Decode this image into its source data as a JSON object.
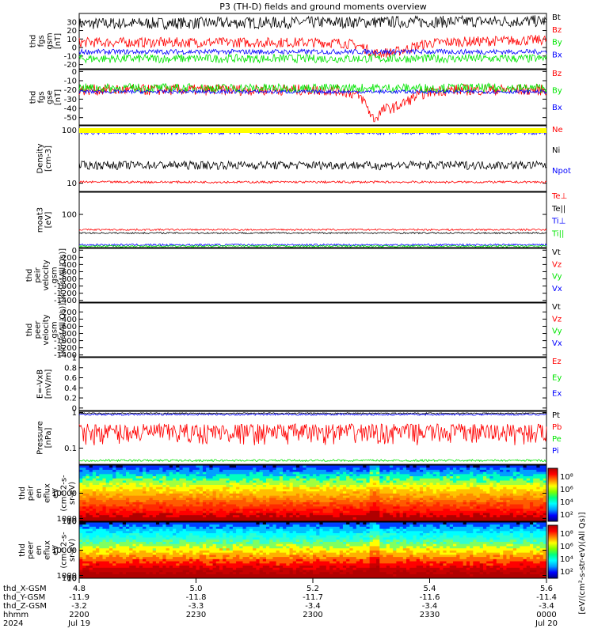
{
  "title": "P3 (TH-D) fields and ground moments overview",
  "colors": {
    "black": "#000000",
    "red": "#ff0000",
    "green": "#00e600",
    "blue": "#0000ff",
    "yellow": "#ffff00"
  },
  "chart_data": [
    {
      "id": "fgs_gsm",
      "type": "line",
      "ylabel": [
        "thd",
        "fgs",
        "gsm",
        "[nT]"
      ],
      "ylim": [
        -25,
        40
      ],
      "ticks": [
        30,
        20,
        10,
        0,
        -10,
        -20
      ],
      "series": [
        {
          "name": "Bt",
          "color": "black",
          "base": 28,
          "noise": 7,
          "trend": "rise"
        },
        {
          "name": "Bz",
          "color": "red",
          "base": 6,
          "noise": 6,
          "trend": "dip_rise"
        },
        {
          "name": "By",
          "color": "green",
          "base": -13,
          "noise": 5,
          "trend": "flat"
        },
        {
          "name": "Bx",
          "color": "blue",
          "base": -5,
          "noise": 3,
          "trend": "flat"
        }
      ]
    },
    {
      "id": "fgs_gse",
      "type": "line",
      "ylabel": [
        "thd",
        "fgs",
        "gse",
        "[nT]"
      ],
      "ylim": [
        -58,
        2
      ],
      "ticks": [
        0,
        -10,
        -20,
        -30,
        -40,
        -50
      ],
      "series": [
        {
          "name": "Bz",
          "color": "red",
          "base": -20,
          "noise": 6,
          "trend": "dip_deep"
        },
        {
          "name": "By",
          "color": "green",
          "base": -18,
          "noise": 5,
          "trend": "flat"
        },
        {
          "name": "Bx",
          "color": "blue",
          "base": -22,
          "noise": 2,
          "trend": "flat"
        }
      ]
    },
    {
      "id": "density",
      "type": "line",
      "log": true,
      "ylabel": [
        "Density",
        "[cm-3]"
      ],
      "ylim": [
        7,
        120
      ],
      "ticks": [
        100,
        10
      ],
      "series": [
        {
          "name": "Ne",
          "color": "red",
          "base": 10.5,
          "noise": 0.5,
          "trend": "flat"
        },
        {
          "name": "Ni",
          "color": "black",
          "base": 22,
          "noise": 4,
          "trend": "dip"
        },
        {
          "name": "Npot",
          "color": "blue",
          "base": 90,
          "noise": 8,
          "trend": "dip"
        }
      ]
    },
    {
      "id": "temperature",
      "type": "line",
      "log": true,
      "ylabel": [
        "moat3",
        "[eV]"
      ],
      "ylim": [
        9,
        500
      ],
      "ticks": [
        100
      ],
      "series": [
        {
          "name": "Te⊥",
          "color": "red",
          "base": 33,
          "noise": 2,
          "trend": "flat"
        },
        {
          "name": "Te||",
          "color": "black",
          "base": 26,
          "noise": 1.5,
          "trend": "flat"
        },
        {
          "name": "Ti⊥",
          "color": "blue",
          "base": 11,
          "noise": 0.8,
          "trend": "flat"
        },
        {
          "name": "Ti||",
          "color": "green",
          "base": 10,
          "noise": 0.6,
          "trend": "flat"
        }
      ]
    },
    {
      "id": "peir_velocity",
      "type": "line",
      "ylabel": [
        "thd",
        "peir",
        "velocity",
        "gsm",
        "[km/s(All Qs)]"
      ],
      "ylim": [
        -1450,
        50
      ],
      "ticks": [
        0,
        -200,
        -400,
        -600,
        -800,
        -1000,
        -1200,
        -1400
      ],
      "series": [
        {
          "name": "Vt",
          "color": "black"
        },
        {
          "name": "Vz",
          "color": "red"
        },
        {
          "name": "Vy",
          "color": "green"
        },
        {
          "name": "Vx",
          "color": "blue"
        }
      ]
    },
    {
      "id": "peer_velocity",
      "type": "line",
      "ylabel": [
        "thd",
        "peer",
        "velocity",
        "gsm",
        "[km/s(All Qs)]"
      ],
      "ylim": [
        -1450,
        50
      ],
      "ticks": [
        -200,
        -400,
        -600,
        -800,
        -1000,
        -1200,
        -1400
      ],
      "series": [
        {
          "name": "Vt",
          "color": "black"
        },
        {
          "name": "Vz",
          "color": "red"
        },
        {
          "name": "Vy",
          "color": "green"
        },
        {
          "name": "Vx",
          "color": "blue"
        }
      ]
    },
    {
      "id": "efield",
      "type": "line",
      "ylabel": [
        "E=-VxB",
        "[mV/m]"
      ],
      "ylim": [
        -0.05,
        1.0
      ],
      "ticks": [
        1.0,
        0.8,
        0.6,
        0.4,
        0.2,
        0.0
      ],
      "series": [
        {
          "name": "Ez",
          "color": "red"
        },
        {
          "name": "Ey",
          "color": "green"
        },
        {
          "name": "Ex",
          "color": "blue"
        }
      ]
    },
    {
      "id": "pressure",
      "type": "line",
      "log": true,
      "ylabel": [
        "Pressure",
        "[nPa]"
      ],
      "ylim": [
        0.035,
        1.08
      ],
      "ticks": [
        1.0,
        0.1
      ],
      "series": [
        {
          "name": "Pt",
          "color": "black",
          "base": 0.95,
          "noise": 0.04,
          "trend": "flat"
        },
        {
          "name": "Pb",
          "color": "red",
          "base": 0.3,
          "noise": 0.18,
          "trend": "flat"
        },
        {
          "name": "Pe",
          "color": "green",
          "base": 0.045,
          "noise": 0.003,
          "trend": "flat"
        },
        {
          "name": "Pi",
          "color": "blue",
          "base": 0.88,
          "noise": 0.05,
          "trend": "flat"
        }
      ]
    },
    {
      "id": "peir_spec",
      "type": "heatmap",
      "ylabel": [
        "thd",
        "peir",
        "en",
        "eflux",
        "eV",
        "(cm^2-s-",
        "sr-eV)"
      ],
      "ylim": [
        7,
        20000
      ],
      "ticks": [
        10000,
        1000,
        100,
        10
      ]
    },
    {
      "id": "peer_spec",
      "type": "heatmap",
      "ylabel": [
        "thd",
        "peer",
        "en",
        "eflux",
        "eV",
        "(cm^2-s-",
        "sr-eV)"
      ],
      "ylim": [
        7,
        20000
      ],
      "ticks": [
        10000,
        1000,
        100,
        10
      ]
    }
  ],
  "colorbars": [
    {
      "ticks": [
        "10⁸",
        "10⁶",
        "10⁴",
        "10²"
      ]
    },
    {
      "ticks": [
        "10⁸",
        "10⁶",
        "10⁴",
        "10²"
      ]
    }
  ],
  "colorbar_label": "[eV/(cm²-s-str-eV)(All Qs)]",
  "x_axis": {
    "range": [
      4.8,
      5.6
    ],
    "rows": [
      {
        "label": "thd_X-GSM",
        "values": [
          "4.8",
          "5.0",
          "5.2",
          "5.4",
          "5.6"
        ]
      },
      {
        "label": "thd_Y-GSM",
        "values": [
          "-11.9",
          "-11.8",
          "-11.7",
          "-11.6",
          "-11.4"
        ]
      },
      {
        "label": "thd_Z-GSM",
        "values": [
          "-3.2",
          "-3.3",
          "-3.4",
          "-3.4",
          "-3.4"
        ]
      },
      {
        "label": "hhmm",
        "values": [
          "2200",
          "2230",
          "2300",
          "2330",
          "0000"
        ]
      },
      {
        "label": "2024",
        "values": [
          "Jul 19",
          "",
          "",
          "",
          "Jul 20"
        ]
      }
    ]
  }
}
